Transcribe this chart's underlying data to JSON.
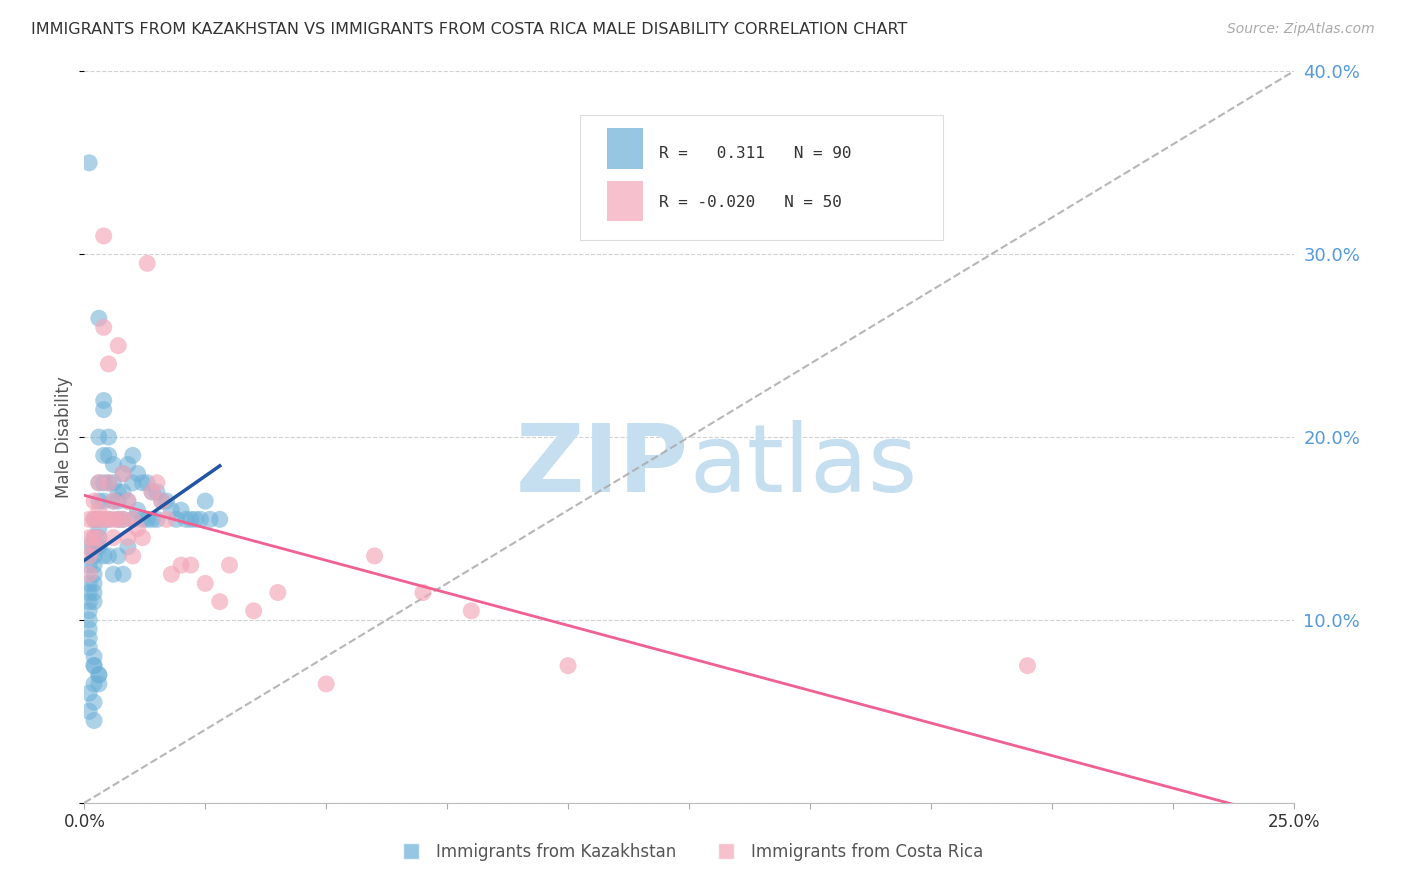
{
  "title": "IMMIGRANTS FROM KAZAKHSTAN VS IMMIGRANTS FROM COSTA RICA MALE DISABILITY CORRELATION CHART",
  "source": "Source: ZipAtlas.com",
  "ylabel": "Male Disability",
  "xlim": [
    0.0,
    0.25
  ],
  "ylim": [
    0.0,
    0.4
  ],
  "xticks": [
    0.0,
    0.025,
    0.05,
    0.075,
    0.1,
    0.125,
    0.15,
    0.175,
    0.2,
    0.225,
    0.25
  ],
  "xticklabels_show": {
    "0": "0.0%",
    "10": "25.0%"
  },
  "yticks": [
    0.0,
    0.1,
    0.2,
    0.3,
    0.4
  ],
  "yticklabels_right": [
    "",
    "10.0%",
    "20.0%",
    "30.0%",
    "40.0%"
  ],
  "kazakhstan_R": 0.311,
  "kazakhstan_N": 90,
  "costarica_R": -0.02,
  "costarica_N": 50,
  "kazakhstan_color": "#6aaed6",
  "costarica_color": "#f4a6b8",
  "trend_kaz_color": "#2255a4",
  "trend_cr_color": "#f06090",
  "diagonal_color": "#aaaaaa",
  "background_color": "#ffffff",
  "grid_color": "#cccccc",
  "title_color": "#333333",
  "right_axis_color": "#5599dd",
  "kazakhstan_x": [
    0.001,
    0.001,
    0.001,
    0.001,
    0.001,
    0.001,
    0.001,
    0.001,
    0.001,
    0.001,
    0.002,
    0.002,
    0.002,
    0.002,
    0.002,
    0.002,
    0.002,
    0.002,
    0.002,
    0.002,
    0.003,
    0.003,
    0.003,
    0.003,
    0.003,
    0.003,
    0.003,
    0.003,
    0.003,
    0.004,
    0.004,
    0.004,
    0.004,
    0.004,
    0.004,
    0.005,
    0.005,
    0.005,
    0.005,
    0.005,
    0.006,
    0.006,
    0.006,
    0.006,
    0.007,
    0.007,
    0.007,
    0.007,
    0.008,
    0.008,
    0.008,
    0.008,
    0.009,
    0.009,
    0.009,
    0.01,
    0.01,
    0.01,
    0.011,
    0.011,
    0.012,
    0.012,
    0.013,
    0.013,
    0.014,
    0.014,
    0.015,
    0.015,
    0.016,
    0.017,
    0.018,
    0.019,
    0.02,
    0.021,
    0.022,
    0.023,
    0.024,
    0.025,
    0.026,
    0.028,
    0.001,
    0.002,
    0.003,
    0.002,
    0.003,
    0.002,
    0.001,
    0.002,
    0.001,
    0.002
  ],
  "kazakhstan_y": [
    0.14,
    0.13,
    0.12,
    0.115,
    0.11,
    0.105,
    0.1,
    0.095,
    0.09,
    0.085,
    0.155,
    0.145,
    0.14,
    0.135,
    0.13,
    0.125,
    0.12,
    0.115,
    0.11,
    0.08,
    0.265,
    0.2,
    0.175,
    0.165,
    0.155,
    0.15,
    0.145,
    0.14,
    0.065,
    0.22,
    0.215,
    0.19,
    0.175,
    0.165,
    0.135,
    0.2,
    0.19,
    0.175,
    0.155,
    0.135,
    0.185,
    0.175,
    0.165,
    0.125,
    0.17,
    0.165,
    0.155,
    0.135,
    0.18,
    0.17,
    0.155,
    0.125,
    0.185,
    0.165,
    0.14,
    0.19,
    0.175,
    0.155,
    0.18,
    0.16,
    0.175,
    0.155,
    0.175,
    0.155,
    0.17,
    0.155,
    0.17,
    0.155,
    0.165,
    0.165,
    0.16,
    0.155,
    0.16,
    0.155,
    0.155,
    0.155,
    0.155,
    0.165,
    0.155,
    0.155,
    0.35,
    0.075,
    0.07,
    0.075,
    0.07,
    0.065,
    0.06,
    0.055,
    0.05,
    0.045
  ],
  "costarica_x": [
    0.001,
    0.001,
    0.001,
    0.001,
    0.002,
    0.002,
    0.002,
    0.002,
    0.003,
    0.003,
    0.003,
    0.003,
    0.004,
    0.004,
    0.004,
    0.005,
    0.005,
    0.005,
    0.006,
    0.006,
    0.006,
    0.007,
    0.007,
    0.008,
    0.008,
    0.009,
    0.009,
    0.01,
    0.01,
    0.011,
    0.012,
    0.013,
    0.014,
    0.015,
    0.016,
    0.017,
    0.018,
    0.02,
    0.022,
    0.025,
    0.028,
    0.03,
    0.035,
    0.04,
    0.05,
    0.06,
    0.07,
    0.08,
    0.1,
    0.195
  ],
  "costarica_y": [
    0.155,
    0.145,
    0.135,
    0.125,
    0.165,
    0.155,
    0.145,
    0.14,
    0.175,
    0.16,
    0.155,
    0.145,
    0.31,
    0.26,
    0.155,
    0.24,
    0.175,
    0.155,
    0.165,
    0.155,
    0.145,
    0.25,
    0.155,
    0.18,
    0.155,
    0.165,
    0.145,
    0.155,
    0.135,
    0.15,
    0.145,
    0.295,
    0.17,
    0.175,
    0.165,
    0.155,
    0.125,
    0.13,
    0.13,
    0.12,
    0.11,
    0.13,
    0.105,
    0.115,
    0.065,
    0.135,
    0.115,
    0.105,
    0.075,
    0.075
  ],
  "watermark_zip": "ZIP",
  "watermark_atlas": "atlas",
  "watermark_color_zip": "#c5dff0",
  "watermark_color_atlas": "#c5dff0"
}
